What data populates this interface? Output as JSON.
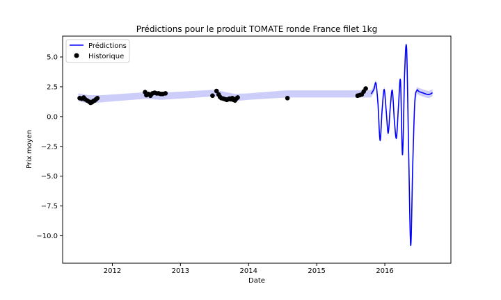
{
  "chart_data": {
    "type": "line",
    "title": "Prédictions pour le produit TOMATE ronde France filet 1kg",
    "xlabel": "Date",
    "ylabel": "Prix moyen",
    "xlim": [
      2011.27,
      2016.97
    ],
    "ylim": [
      -12.3,
      6.75
    ],
    "x_ticks": [
      2012,
      2013,
      2014,
      2015,
      2016
    ],
    "x_tick_labels": [
      "2012",
      "2013",
      "2014",
      "2015",
      "2016"
    ],
    "y_ticks": [
      5.0,
      2.5,
      0.0,
      -2.5,
      -5.0,
      -7.5,
      -10.0
    ],
    "y_tick_labels": [
      "5.0",
      "2.5",
      "0.0",
      "−2.5",
      "−5.0",
      "−7.5",
      "−10.0"
    ],
    "grid": false,
    "legend": {
      "position": "top-left",
      "entries": [
        {
          "label": "Prédictions",
          "marker": "line",
          "color": "#0000ff"
        },
        {
          "label": "Historique",
          "marker": "dot",
          "color": "#000000"
        }
      ]
    },
    "colors": {
      "prediction": "#0000ff",
      "band": "#c8c8fa",
      "history": "#000000"
    },
    "prediction": {
      "name": "Prédictions",
      "x": [
        2015.8,
        2015.84,
        2015.87,
        2015.9,
        2015.93,
        2015.96,
        2015.99,
        2016.02,
        2016.05,
        2016.08,
        2016.11,
        2016.14,
        2016.17,
        2016.2,
        2016.23,
        2016.26,
        2016.29,
        2016.32,
        2016.35,
        2016.38,
        2016.41,
        2016.44,
        2016.47,
        2016.5,
        2016.55,
        2016.6,
        2016.65,
        2016.7
      ],
      "y": [
        1.9,
        2.3,
        2.8,
        1.0,
        -2.0,
        0.5,
        2.3,
        0.5,
        -1.4,
        0.8,
        2.2,
        -0.3,
        -1.8,
        0.8,
        3.0,
        -3.2,
        3.5,
        5.7,
        -3.0,
        -10.8,
        -4.0,
        1.2,
        2.2,
        2.1,
        2.0,
        1.9,
        1.85,
        2.0
      ],
      "band_halfwidth_short_range": 0.3
    },
    "band": {
      "x": [
        2011.5,
        2011.65,
        2011.85,
        2012.5,
        2012.7,
        2012.85,
        2013.5,
        2013.8,
        2014.0,
        2014.55,
        2015.0,
        2015.5,
        2015.8
      ],
      "lower": [
        1.3,
        1.1,
        1.2,
        1.5,
        1.4,
        1.45,
        1.7,
        1.3,
        1.4,
        1.6,
        1.6,
        1.6,
        1.6
      ],
      "upper": [
        1.95,
        1.8,
        1.8,
        2.05,
        2.0,
        2.05,
        2.25,
        1.9,
        1.95,
        2.2,
        2.2,
        2.2,
        2.2
      ]
    },
    "history": {
      "name": "Historique",
      "points": [
        [
          2011.52,
          1.55
        ],
        [
          2011.55,
          1.5
        ],
        [
          2011.58,
          1.6
        ],
        [
          2011.6,
          1.45
        ],
        [
          2011.63,
          1.35
        ],
        [
          2011.66,
          1.25
        ],
        [
          2011.68,
          1.15
        ],
        [
          2011.7,
          1.2
        ],
        [
          2011.72,
          1.3
        ],
        [
          2011.74,
          1.35
        ],
        [
          2011.76,
          1.45
        ],
        [
          2011.78,
          1.55
        ],
        [
          2012.48,
          2.05
        ],
        [
          2012.5,
          1.8
        ],
        [
          2012.53,
          1.9
        ],
        [
          2012.56,
          1.75
        ],
        [
          2012.59,
          1.95
        ],
        [
          2012.62,
          2.0
        ],
        [
          2012.65,
          1.95
        ],
        [
          2012.68,
          1.95
        ],
        [
          2012.71,
          1.9
        ],
        [
          2012.74,
          1.9
        ],
        [
          2012.78,
          1.95
        ],
        [
          2013.47,
          1.75
        ],
        [
          2013.53,
          2.15
        ],
        [
          2013.56,
          1.85
        ],
        [
          2013.58,
          1.65
        ],
        [
          2013.6,
          1.55
        ],
        [
          2013.63,
          1.5
        ],
        [
          2013.66,
          1.45
        ],
        [
          2013.68,
          1.4
        ],
        [
          2013.7,
          1.45
        ],
        [
          2013.72,
          1.5
        ],
        [
          2013.74,
          1.45
        ],
        [
          2013.76,
          1.55
        ],
        [
          2013.78,
          1.4
        ],
        [
          2013.8,
          1.35
        ],
        [
          2013.82,
          1.5
        ],
        [
          2013.84,
          1.6
        ],
        [
          2014.57,
          1.55
        ],
        [
          2015.6,
          1.75
        ],
        [
          2015.63,
          1.8
        ],
        [
          2015.66,
          1.85
        ],
        [
          2015.69,
          2.1
        ],
        [
          2015.72,
          2.35
        ]
      ]
    }
  }
}
